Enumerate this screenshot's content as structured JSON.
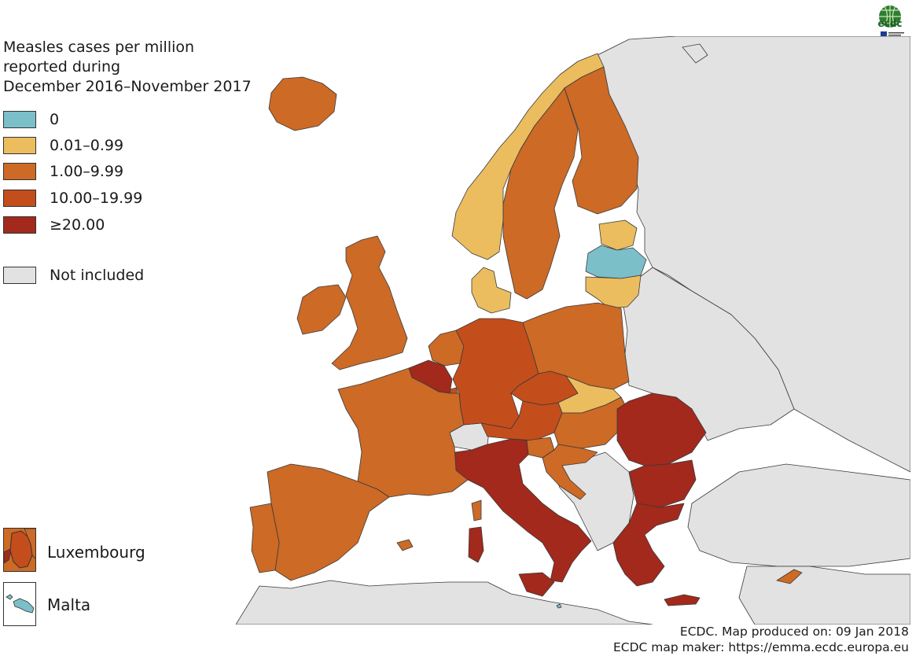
{
  "title_lines": [
    "Measles cases per million",
    "reported during",
    "December 2016–November 2017"
  ],
  "legend": [
    {
      "label": "0",
      "color": "#7bbfc9"
    },
    {
      "label": "0.01–0.99",
      "color": "#ebbd5f"
    },
    {
      "label": "1.00–9.99",
      "color": "#cc6a26"
    },
    {
      "label": "10.00–19.99",
      "color": "#c44d1c"
    },
    {
      "label": "≥20.00",
      "color": "#a2291c"
    }
  ],
  "not_included": {
    "label": "Not included",
    "color": "#e2e2e2"
  },
  "insets": [
    {
      "label": "Luxembourg",
      "color": "#c44d1c"
    },
    {
      "label": "Malta",
      "color": "#7bbfc9"
    }
  ],
  "footer": {
    "line1": "ECDC. Map produced on: 09 Jan 2018",
    "line2": "ECDC map maker: https://emma.ecdc.europa.eu"
  },
  "logo": {
    "text": "ecdc",
    "icon": "ecdc-globe-logo"
  },
  "colors": {
    "sea": "#ffffff",
    "not_included": "#e2e2e2",
    "border": "#3a3a3a"
  },
  "countries": [
    {
      "name": "Iceland",
      "cls": 2
    },
    {
      "name": "Norway",
      "cls": 1
    },
    {
      "name": "Sweden",
      "cls": 2
    },
    {
      "name": "Finland",
      "cls": 2
    },
    {
      "name": "Estonia",
      "cls": 1
    },
    {
      "name": "Latvia",
      "cls": 0
    },
    {
      "name": "Lithuania",
      "cls": 1
    },
    {
      "name": "Denmark",
      "cls": 1
    },
    {
      "name": "Ireland",
      "cls": 2
    },
    {
      "name": "United Kingdom",
      "cls": 2
    },
    {
      "name": "Netherlands",
      "cls": 2
    },
    {
      "name": "Belgium",
      "cls": 4
    },
    {
      "name": "Luxembourg",
      "cls": 3
    },
    {
      "name": "Germany",
      "cls": 3
    },
    {
      "name": "Poland",
      "cls": 2
    },
    {
      "name": "Czechia",
      "cls": 3
    },
    {
      "name": "Slovakia",
      "cls": 1
    },
    {
      "name": "Austria",
      "cls": 3
    },
    {
      "name": "Hungary",
      "cls": 2
    },
    {
      "name": "Slovenia",
      "cls": 2
    },
    {
      "name": "Croatia",
      "cls": 2
    },
    {
      "name": "Romania",
      "cls": 4
    },
    {
      "name": "Bulgaria",
      "cls": 4
    },
    {
      "name": "Greece",
      "cls": 4
    },
    {
      "name": "Italy",
      "cls": 4
    },
    {
      "name": "France",
      "cls": 2
    },
    {
      "name": "Spain",
      "cls": 2
    },
    {
      "name": "Portugal",
      "cls": 2
    },
    {
      "name": "Cyprus",
      "cls": 2
    },
    {
      "name": "Malta",
      "cls": 0
    }
  ]
}
